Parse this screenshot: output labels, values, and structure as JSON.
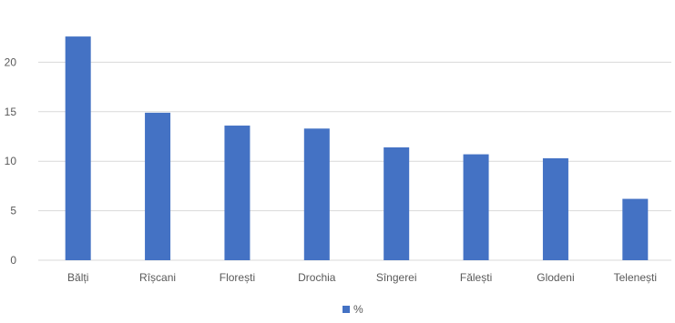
{
  "chart_data": {
    "type": "bar",
    "categories": [
      "Bălți",
      "Rîșcani",
      "Florești",
      "Drochia",
      "Sîngerei",
      "Fălești",
      "Glodeni",
      "Telenești"
    ],
    "series": [
      {
        "name": "%",
        "values": [
          22.6,
          14.9,
          13.6,
          13.3,
          11.4,
          10.7,
          10.3,
          6.2
        ]
      }
    ],
    "ylim": [
      0,
      25
    ],
    "yticks": [
      0,
      5,
      10,
      15,
      20
    ],
    "grid": true,
    "legend_position": "bottom",
    "colors": {
      "bar": "#4472C4",
      "grid": "#D9D9D9",
      "text": "#595959"
    }
  }
}
